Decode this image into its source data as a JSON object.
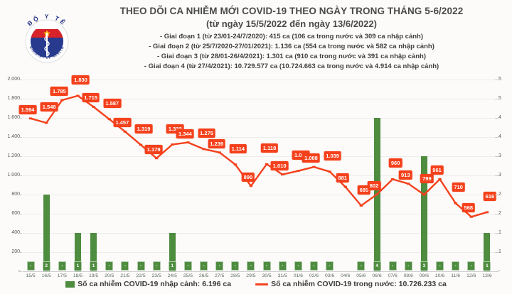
{
  "header": {
    "logo_top_text": "BỘ Y TẾ",
    "logo_bottom_text": "MINISTRY OF HEALTH",
    "title": "THEO DÕI CA NHIỄM MỚI COVID-19 THEO NGÀY TRONG THÁNG 5-6/2022",
    "subtitle": "(từ ngày 15/5/2022 đến ngày 13/6/2022)",
    "notes": [
      "- Giai đoạn 1 (từ 23/01-24/7/2020): 415 ca (106 ca trong nước và 309 ca nhập cảnh)",
      "- Giai đoạn 2 (từ 25/7/2020-27/01/2021): 1.136 ca (554 ca trong nước và 582 ca nhập cảnh)",
      "- Giai đoạn 3 (từ 28/01-26/4/2021): 1.301 ca (910 ca trong nước và 391 ca nhập cảnh)",
      "- Giai đoạn 4 (từ 27/4/2021): 10.729.577 ca (10.724.663 ca trong nước và 4.914 ca nhập cảnh)"
    ]
  },
  "chart_data": {
    "type": "combo-bar-line",
    "title": "THEO DÕI CA NHIỄM MỚI COVID-19 THEO NGÀY TRONG THÁNG 5-6/2022",
    "categories": [
      "15/5",
      "16/5",
      "17/5",
      "18/5",
      "19/5",
      "20/5",
      "21/5",
      "22/5",
      "23/5",
      "24/5",
      "25/5",
      "26/5",
      "27/5",
      "28/5",
      "29/5",
      "30/5",
      "31/5",
      "01/6",
      "02/6",
      "03/6",
      "04/6",
      "05/6",
      "06/6",
      "07/6",
      "08/6",
      "09/6",
      "10/6",
      "11/6",
      "12/6",
      "13/6"
    ],
    "series": [
      {
        "name": "Số ca nhiễm COVID-19 nhập cảnh",
        "type": "bar",
        "yaxis": "right",
        "color": "#4e8c3f",
        "values": [
          0,
          2,
          0,
          1,
          1,
          0,
          0,
          0,
          0,
          1,
          0,
          0,
          0,
          0,
          0,
          0,
          0,
          0,
          0,
          0,
          null,
          0,
          4,
          0,
          0,
          3,
          0,
          0,
          0,
          1
        ],
        "labels": [
          "-",
          "2",
          "-",
          "1",
          "1",
          "-",
          "-",
          "-",
          "-",
          "1",
          "-",
          "-",
          "-",
          "-",
          "-",
          "-",
          "-",
          "-",
          "-",
          "-",
          "",
          "-",
          "4",
          "-",
          "-",
          "3",
          "-",
          "-",
          "-",
          "1"
        ]
      },
      {
        "name": "Số ca nhiễm COVID-19 trong nước",
        "type": "line",
        "yaxis": "left",
        "color": "#f4411c",
        "values": [
          1594,
          1548,
          1785,
          1830,
          1715,
          1587,
          1457,
          1319,
          1179,
          1322,
          1344,
          1275,
          1239,
          1114,
          890,
          1118,
          1010,
          1047,
          1088,
          1039,
          881,
          685,
          802,
          960,
          913,
          799,
          961,
          710,
          568,
          616
        ],
        "labels": [
          "1.594",
          "1.548",
          "1.785",
          "1.830",
          "1.715",
          "1.587",
          "1.457",
          "1.319",
          "1.179",
          "1.322",
          "1.344",
          "1.275",
          "1.239",
          "1.114",
          "890",
          "1.118",
          "1.010",
          "1.047",
          "1.088",
          "1.039",
          "881",
          "685",
          "802",
          "960",
          "913",
          "799",
          "961",
          "710",
          "568",
          "616"
        ]
      }
    ],
    "left_axis": {
      "min": 0,
      "max": 2000,
      "tick_labels": [
        "2.000",
        "1.800",
        "1.600",
        "1.400",
        "1.200",
        "1.000",
        "800",
        "600",
        "400",
        "200",
        "-"
      ]
    },
    "right_axis": {
      "min": 0,
      "max": 5,
      "tick_labels": [
        "5",
        "5",
        "4",
        "4",
        "3",
        "3",
        "2",
        "2",
        "1",
        "1",
        "-"
      ]
    },
    "grid": true,
    "legend_position": "bottom"
  },
  "legend": {
    "imported": "Số ca nhiễm COVID-19 nhập cảnh: 6.196 ca",
    "domestic": "Số ca nhiễm COVID-19 trong nước: 10.726.233 ca"
  }
}
